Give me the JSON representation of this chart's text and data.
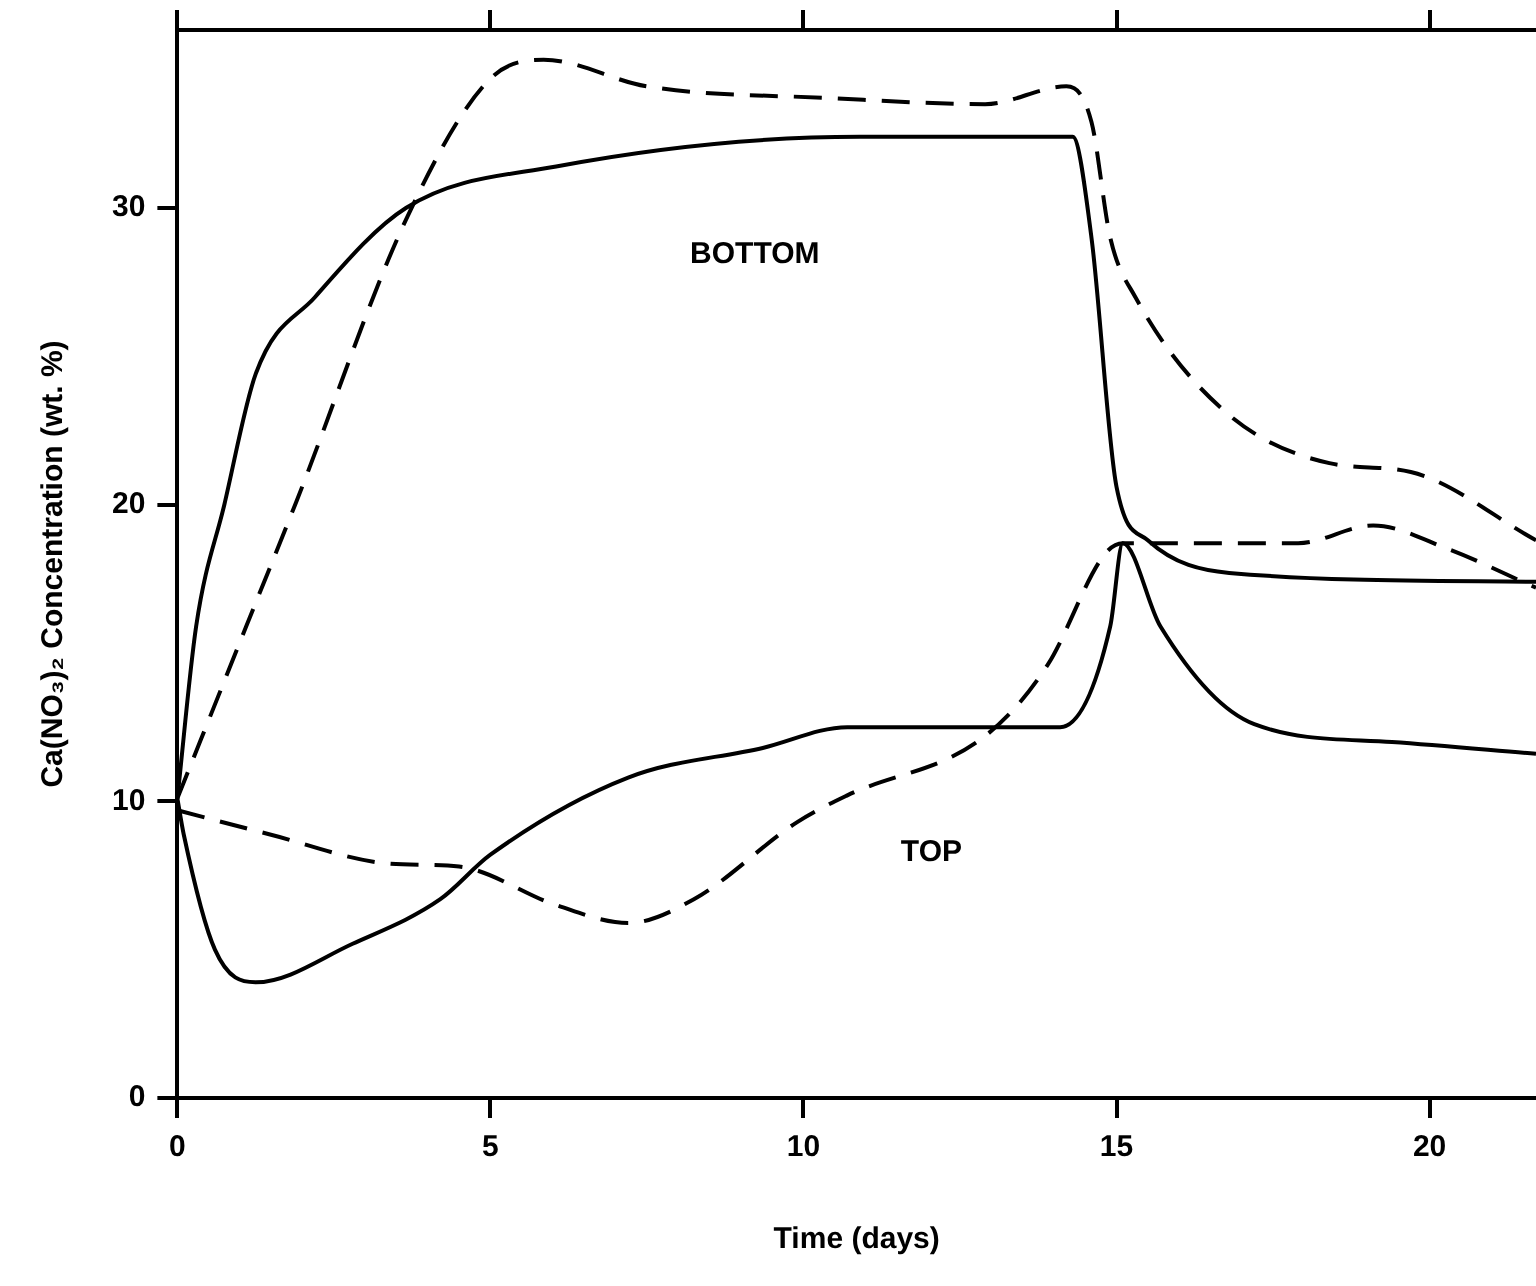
{
  "chart_data": {
    "type": "line",
    "xlabel": "Time (days)",
    "ylabel": "Ca(NO₃)₂ Concentration (wt. %)",
    "xlim": [
      0,
      21.7
    ],
    "ylim": [
      0,
      36
    ],
    "xticks": [
      0,
      5,
      10,
      15,
      20
    ],
    "yticks": [
      0,
      10,
      20,
      30
    ],
    "grid": false,
    "legend": false,
    "marker": "none",
    "series": [
      {
        "color": "#000000",
        "line_style": "solid",
        "x": [
          0,
          0.3,
          0.75,
          1.25,
          2.2,
          3.65,
          6.05,
          10.9,
          14.3,
          14.6,
          15.0,
          15.5,
          16.8,
          21.7
        ],
        "values": [
          10.1,
          15.9,
          20,
          24.4,
          27,
          30,
          31.4,
          32.4,
          32.4,
          29,
          20.6,
          18.8,
          17.7,
          17.4
        ]
      },
      {
        "color": "#000000",
        "line_style": "dashed",
        "x": [
          0,
          1.1,
          1.9,
          3.65,
          4.97,
          5.85,
          7.5,
          10.5,
          12.9,
          14.2,
          14.6,
          14.9,
          15.3,
          16.7,
          18.4,
          19.7,
          21.7
        ],
        "values": [
          10.1,
          15.9,
          20.1,
          29.6,
          34.3,
          35,
          34.1,
          33.7,
          33.5,
          34.1,
          32.9,
          29,
          27,
          23.2,
          21.4,
          21.1,
          18.8
        ]
      },
      {
        "color": "#000000",
        "line_style": "solid",
        "x": [
          0,
          0.1,
          0.6,
          1.25,
          2.8,
          4.2,
          5,
          7.2,
          9.35,
          10.7,
          14.1,
          14.9,
          15.1,
          15.7,
          17.2,
          19.4,
          21.7
        ],
        "values": [
          10.1,
          8.9,
          5,
          3.9,
          5.2,
          6.7,
          8.2,
          10.8,
          11.8,
          12.5,
          12.5,
          15.9,
          18.7,
          15.9,
          12.6,
          12,
          11.6
        ]
      },
      {
        "color": "#000000",
        "line_style": "dashed",
        "x": [
          0,
          1.45,
          3.4,
          4.5,
          6.05,
          7.2,
          8.25,
          9.9,
          10.7,
          12.9,
          13.9,
          14.8,
          15.1,
          17.9,
          19.1,
          20.3,
          21.7
        ],
        "values": [
          9.7,
          8.9,
          7.9,
          7.8,
          6.5,
          5.9,
          6.7,
          9.3,
          10.2,
          12.2,
          14.6,
          18.3,
          18.7,
          18.7,
          19.3,
          18.5,
          17.2
        ]
      }
    ],
    "annotations": [
      "BOTTOM",
      "TOP"
    ]
  }
}
